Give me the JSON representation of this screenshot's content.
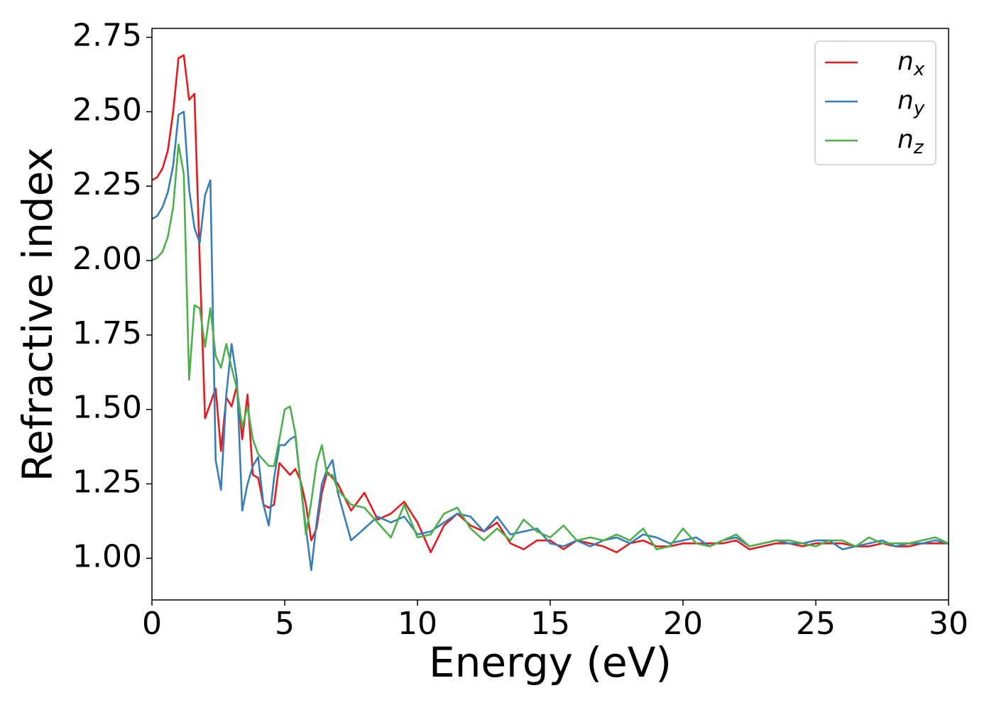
{
  "chart_data": {
    "type": "line",
    "xlabel": "Energy (eV)",
    "ylabel": "Refractive index",
    "x": [
      0,
      0.2,
      0.4,
      0.6,
      0.8,
      1,
      1.2,
      1.4,
      1.6,
      1.8,
      2,
      2.2,
      2.4,
      2.6,
      2.8,
      3,
      3.2,
      3.4,
      3.6,
      3.8,
      4,
      4.2,
      4.4,
      4.6,
      4.8,
      5,
      5.2,
      5.4,
      5.6,
      5.8,
      6,
      6.2,
      6.4,
      6.6,
      6.8,
      7,
      7.5,
      8,
      8.5,
      9,
      9.5,
      10,
      10.5,
      11,
      11.5,
      12,
      12.5,
      13,
      13.5,
      14,
      14.5,
      15,
      15.5,
      16,
      16.5,
      17,
      17.5,
      18,
      18.5,
      19,
      19.5,
      20,
      20.5,
      21,
      21.5,
      22,
      22.5,
      23,
      23.5,
      24,
      24.5,
      25,
      25.5,
      26,
      26.5,
      27,
      27.5,
      28,
      28.5,
      29,
      29.5,
      30
    ],
    "series": [
      {
        "name": "n_x",
        "color": "#e41a1c",
        "values": [
          2.27,
          2.28,
          2.31,
          2.37,
          2.5,
          2.68,
          2.69,
          2.54,
          2.56,
          2.0,
          1.47,
          1.52,
          1.57,
          1.36,
          1.54,
          1.51,
          1.58,
          1.4,
          1.55,
          1.28,
          1.27,
          1.18,
          1.17,
          1.18,
          1.32,
          1.3,
          1.28,
          1.3,
          1.26,
          1.18,
          1.06,
          1.1,
          1.22,
          1.29,
          1.27,
          1.25,
          1.16,
          1.22,
          1.13,
          1.15,
          1.19,
          1.12,
          1.02,
          1.11,
          1.15,
          1.11,
          1.09,
          1.12,
          1.05,
          1.03,
          1.06,
          1.06,
          1.03,
          1.06,
          1.05,
          1.04,
          1.02,
          1.05,
          1.06,
          1.04,
          1.04,
          1.05,
          1.05,
          1.05,
          1.05,
          1.06,
          1.03,
          1.04,
          1.05,
          1.05,
          1.04,
          1.05,
          1.05,
          1.05,
          1.04,
          1.04,
          1.05,
          1.04,
          1.04,
          1.05,
          1.05,
          1.05
        ]
      },
      {
        "name": "n_y",
        "color": "#377eb8",
        "values": [
          2.14,
          2.15,
          2.18,
          2.23,
          2.32,
          2.49,
          2.5,
          2.24,
          2.11,
          2.06,
          2.22,
          2.27,
          1.33,
          1.23,
          1.55,
          1.72,
          1.6,
          1.16,
          1.25,
          1.31,
          1.34,
          1.18,
          1.11,
          1.27,
          1.38,
          1.38,
          1.4,
          1.41,
          1.25,
          1.1,
          0.96,
          1.12,
          1.25,
          1.3,
          1.33,
          1.22,
          1.06,
          1.1,
          1.14,
          1.12,
          1.14,
          1.08,
          1.09,
          1.12,
          1.15,
          1.14,
          1.09,
          1.14,
          1.08,
          1.09,
          1.1,
          1.05,
          1.04,
          1.06,
          1.04,
          1.06,
          1.07,
          1.05,
          1.08,
          1.07,
          1.05,
          1.06,
          1.07,
          1.04,
          1.06,
          1.07,
          1.04,
          1.05,
          1.06,
          1.05,
          1.05,
          1.06,
          1.06,
          1.03,
          1.04,
          1.05,
          1.06,
          1.04,
          1.05,
          1.05,
          1.06,
          1.05
        ]
      },
      {
        "name": "n_z",
        "color": "#4daf4a",
        "values": [
          2.0,
          2.01,
          2.03,
          2.08,
          2.18,
          2.39,
          2.29,
          1.6,
          1.85,
          1.84,
          1.71,
          1.84,
          1.68,
          1.64,
          1.72,
          1.64,
          1.57,
          1.44,
          1.51,
          1.4,
          1.35,
          1.33,
          1.31,
          1.31,
          1.4,
          1.5,
          1.51,
          1.42,
          1.25,
          1.08,
          1.19,
          1.32,
          1.38,
          1.28,
          1.28,
          1.23,
          1.18,
          1.17,
          1.12,
          1.07,
          1.18,
          1.07,
          1.08,
          1.15,
          1.17,
          1.1,
          1.06,
          1.1,
          1.06,
          1.13,
          1.09,
          1.07,
          1.11,
          1.06,
          1.07,
          1.06,
          1.08,
          1.06,
          1.1,
          1.03,
          1.04,
          1.1,
          1.05,
          1.04,
          1.06,
          1.08,
          1.04,
          1.05,
          1.06,
          1.06,
          1.05,
          1.04,
          1.06,
          1.06,
          1.04,
          1.07,
          1.05,
          1.05,
          1.05,
          1.06,
          1.07,
          1.05
        ]
      }
    ],
    "xlim": [
      0,
      30
    ],
    "xticks": [
      0,
      5,
      10,
      15,
      20,
      25,
      30
    ],
    "ylim": [
      0.86,
      2.78
    ],
    "yticks": [
      {
        "value": 1,
        "label": "1.00"
      },
      1.25,
      {
        "value": 1.5,
        "label": "1.50"
      },
      1.75,
      {
        "value": 2,
        "label": "2.00"
      },
      2.25,
      {
        "value": 2.5,
        "label": "2.50"
      },
      2.75
    ],
    "grid": false,
    "legend": "upper right"
  }
}
